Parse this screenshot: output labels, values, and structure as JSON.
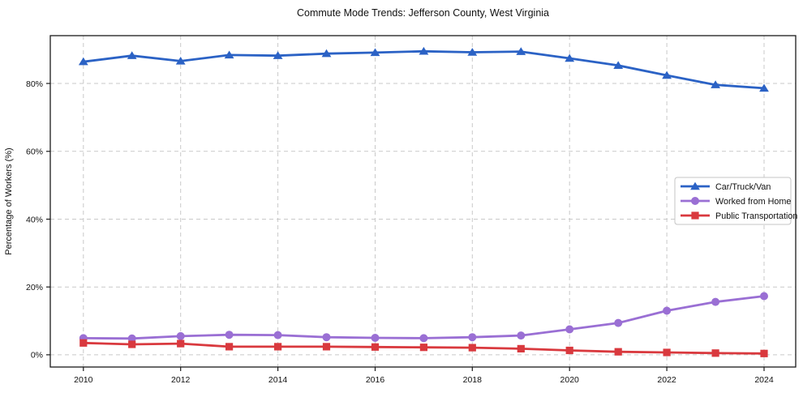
{
  "chart_data": {
    "type": "line",
    "title": "Commute Mode Trends: Jefferson County, West Virginia",
    "xlabel": "",
    "ylabel": "Percentage of Workers (%)",
    "x": [
      2010,
      2011,
      2012,
      2013,
      2014,
      2015,
      2016,
      2017,
      2018,
      2019,
      2020,
      2021,
      2022,
      2023,
      2024
    ],
    "series": [
      {
        "name": "Car/Truck/Van",
        "marker": "triangle",
        "color": "#2b62c5",
        "values": [
          86.4,
          88.2,
          86.6,
          88.4,
          88.2,
          88.8,
          89.1,
          89.5,
          89.2,
          89.4,
          87.4,
          85.3,
          82.4,
          79.6,
          78.6
        ]
      },
      {
        "name": "Worked from Home",
        "marker": "circle",
        "color": "#9a6fd4",
        "values": [
          4.9,
          4.8,
          5.5,
          5.9,
          5.8,
          5.2,
          5.0,
          4.9,
          5.2,
          5.7,
          7.5,
          9.4,
          13.0,
          15.6,
          17.3
        ]
      },
      {
        "name": "Public Transportation",
        "marker": "square",
        "color": "#d9393e",
        "values": [
          3.5,
          3.1,
          3.3,
          2.4,
          2.4,
          2.4,
          2.3,
          2.2,
          2.1,
          1.8,
          1.3,
          0.9,
          0.7,
          0.5,
          0.4
        ]
      }
    ],
    "xticks": [
      2010,
      2012,
      2014,
      2016,
      2018,
      2020,
      2022,
      2024
    ],
    "xtick_labels": [
      "2010",
      "2012",
      "2014",
      "2016",
      "2018",
      "2020",
      "2022",
      "2024"
    ],
    "yticks": [
      0,
      20,
      40,
      60,
      80
    ],
    "ytick_labels": [
      "0%",
      "20%",
      "40%",
      "60%",
      "80%"
    ],
    "xlim": [
      2009.32,
      2024.65
    ],
    "ylim": [
      -3.6,
      94.1
    ],
    "grid": true,
    "legend": {
      "position": "center-right",
      "labels": [
        "Car/Truck/Van",
        "Worked from Home",
        "Public Transportation"
      ]
    }
  }
}
